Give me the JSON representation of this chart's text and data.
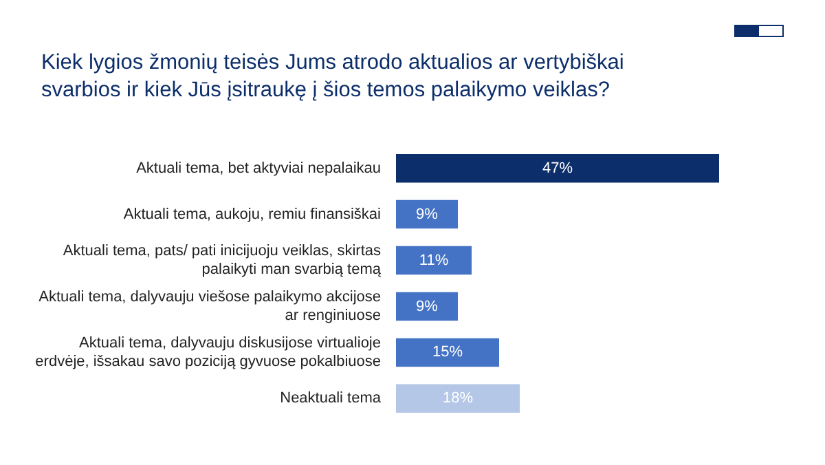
{
  "chart_data": {
    "type": "bar",
    "orientation": "horizontal",
    "title": "Kiek lygios žmonių teisės Jums atrodo aktualios ar vertybiškai svarbios ir kiek Jūs įsitraukę į šios temos palaikymo veiklas?",
    "categories": [
      "Aktuali tema, bet aktyviai nepalaikau",
      "Aktuali tema, aukoju, remiu finansiškai",
      "Aktuali tema, pats/ pati inicijuoju veiklas, skirtas palaikyti man svarbią temą",
      "Aktuali tema, dalyvauju viešose palaikymo akcijose ar renginiuose",
      "Aktuali tema, dalyvauju diskusijose virtualioje erdvėje, išsakau savo poziciją gyvuose pokalbiuose",
      "Neaktuali tema"
    ],
    "values": [
      47,
      9,
      11,
      9,
      15,
      18
    ],
    "colors": [
      "#0c2e6a",
      "#4472c4",
      "#4472c4",
      "#4472c4",
      "#4472c4",
      "#b4c7e7"
    ],
    "value_labels": [
      "47%",
      "9%",
      "11%",
      "9%",
      "15%",
      "18%"
    ],
    "legend": false
  }
}
